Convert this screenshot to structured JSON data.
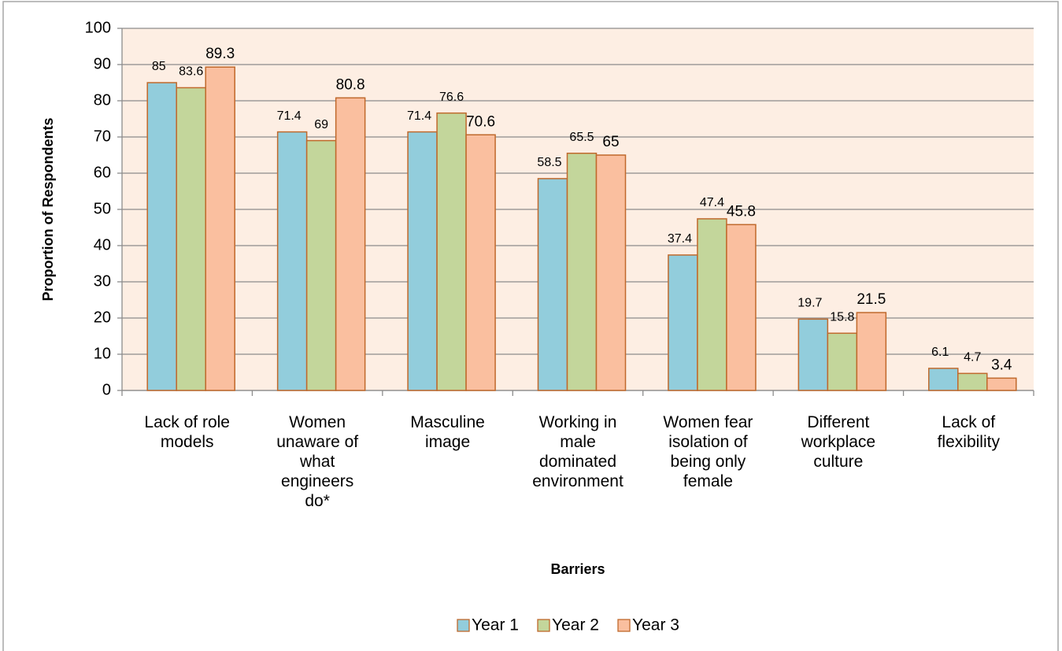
{
  "chart_data": {
    "type": "bar",
    "xlabel": "Barriers",
    "ylabel": "Proportion of Respondents",
    "categories": [
      "Lack of role models",
      "Women unaware of what engineers do*",
      "Masculine image",
      "Working in male dominated environment",
      "Women fear isolation of being only female",
      "Different workplace culture",
      "Lack of flexibility"
    ],
    "series": [
      {
        "name": "Year 1",
        "color": "#92cddc",
        "values": [
          85,
          71.4,
          71.4,
          58.5,
          37.4,
          19.7,
          6.1
        ]
      },
      {
        "name": "Year 2",
        "color": "#c3d69b",
        "values": [
          83.6,
          69,
          76.6,
          65.5,
          47.4,
          15.8,
          4.7
        ]
      },
      {
        "name": "Year 3",
        "color": "#fabf9f",
        "values": [
          89.3,
          80.8,
          70.6,
          65,
          45.8,
          21.5,
          3.4
        ]
      }
    ],
    "ylim": [
      0,
      100
    ],
    "yticks": [
      0,
      10,
      20,
      30,
      40,
      50,
      60,
      70,
      80,
      90,
      100
    ],
    "grid": true,
    "legend": "bottom"
  }
}
